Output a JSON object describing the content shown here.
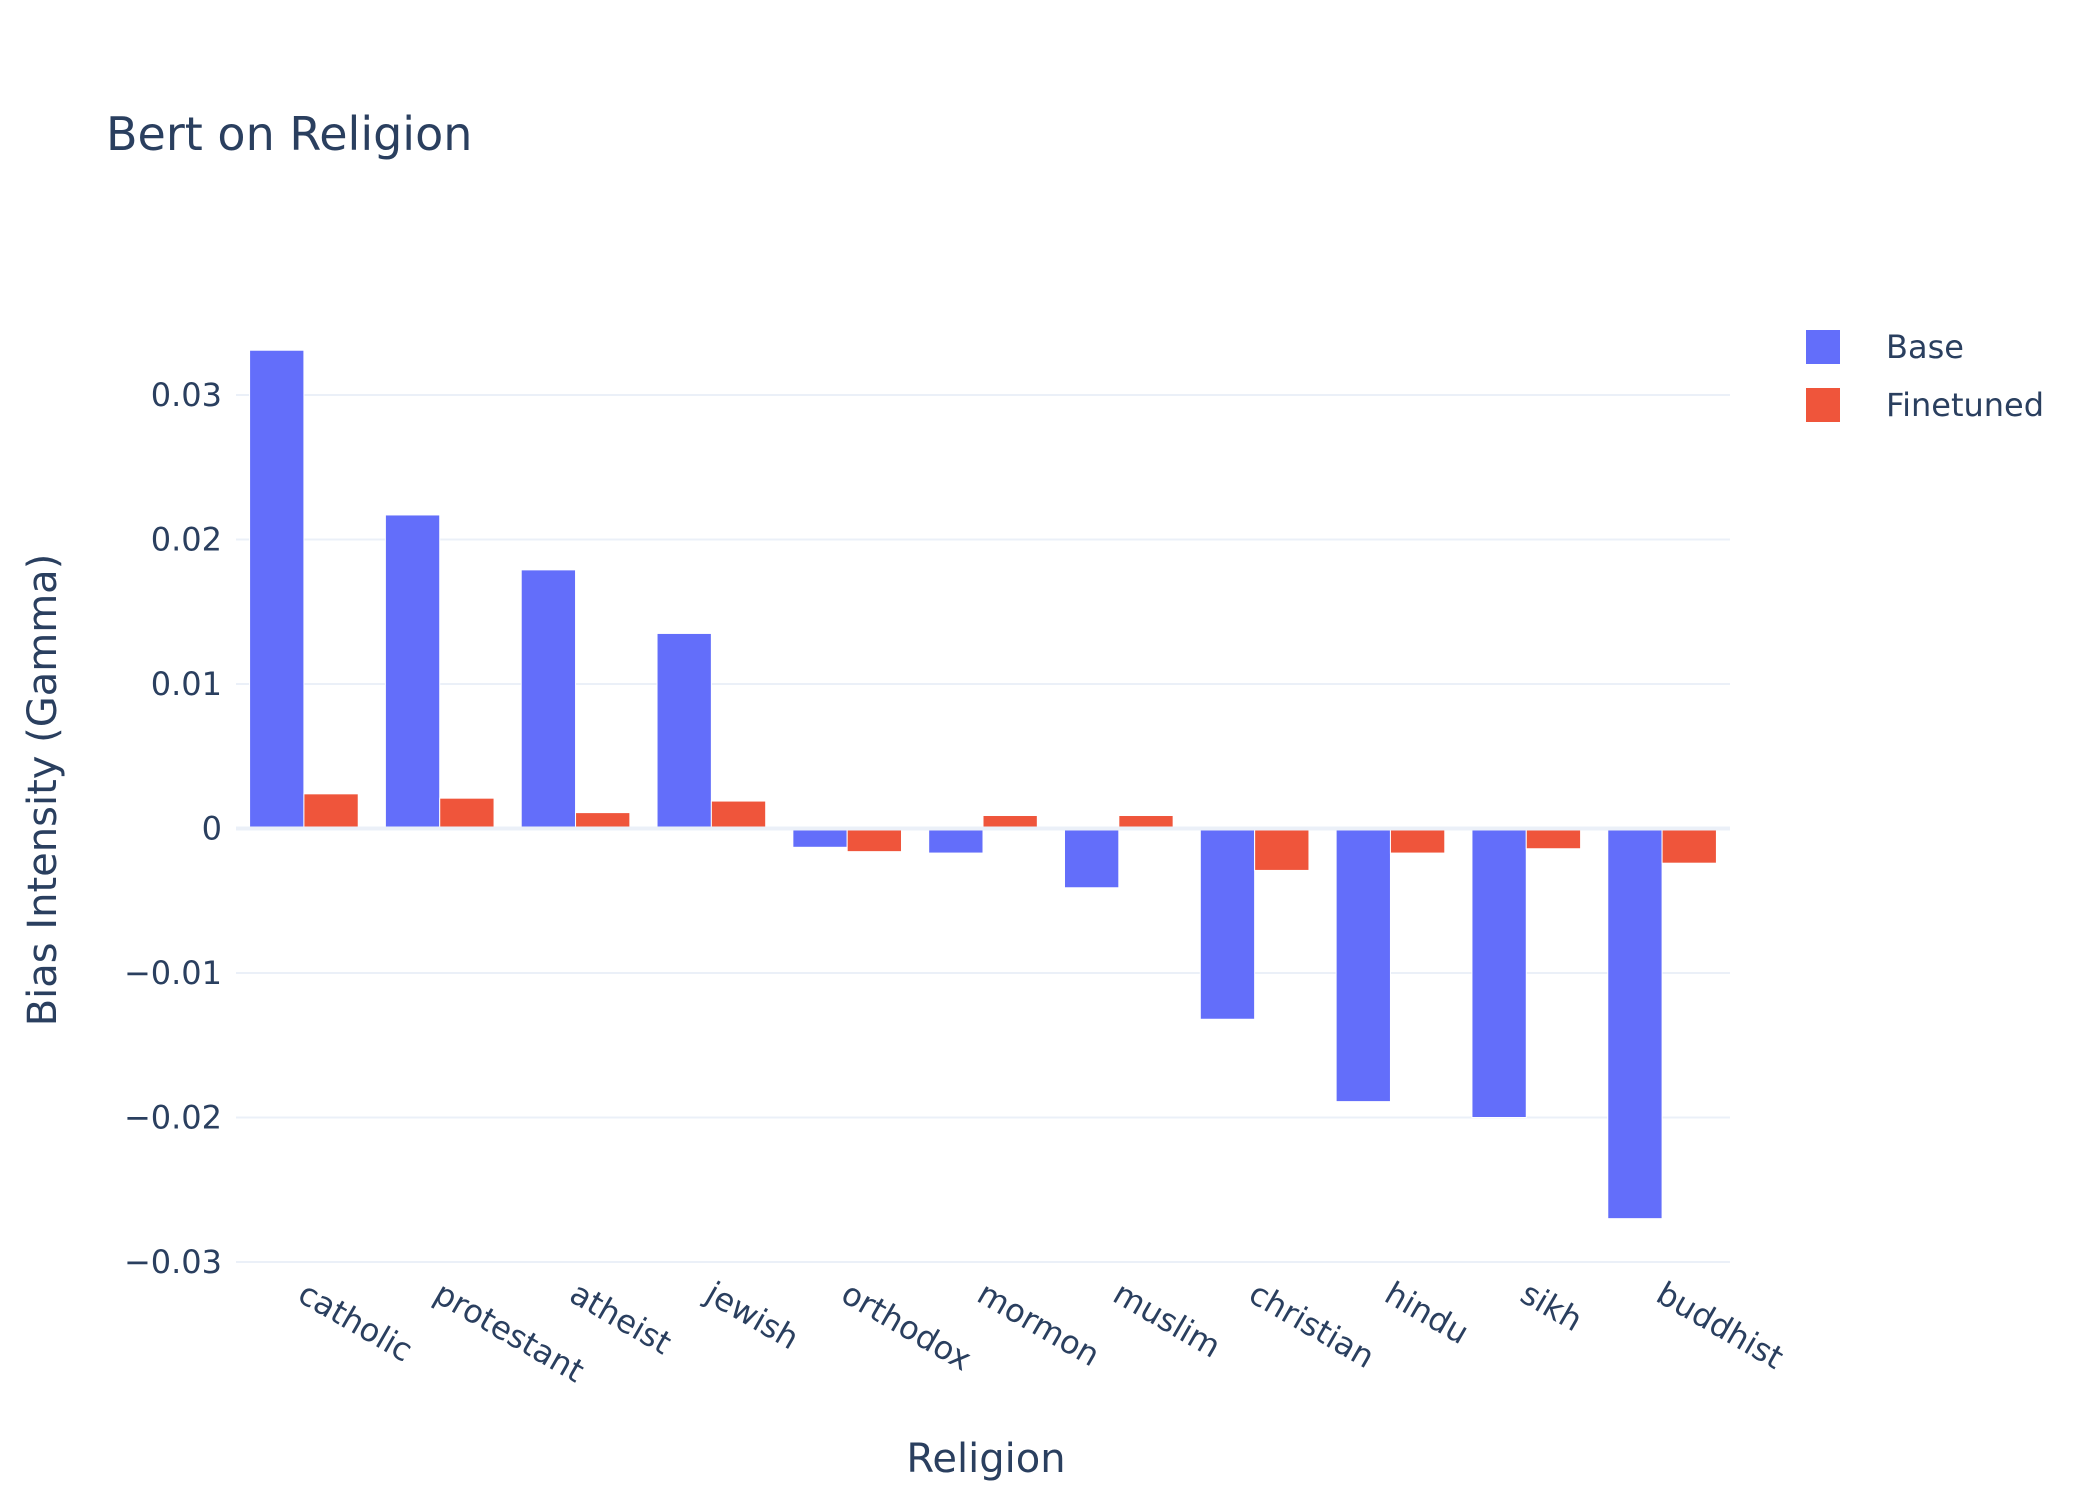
{
  "chart_data": {
    "type": "bar",
    "title": "Bert on Religion",
    "xlabel": "Religion",
    "ylabel": "Bias Intensity (Gamma)",
    "categories": [
      "catholic",
      "protestant",
      "atheist",
      "jewish",
      "orthodox",
      "mormon",
      "muslim",
      "christian",
      "hindu",
      "sikh",
      "buddhist"
    ],
    "series": [
      {
        "name": "Base",
        "color": "#636efa",
        "values": [
          0.0331,
          0.0217,
          0.0179,
          0.0135,
          -0.0013,
          -0.0017,
          -0.0041,
          -0.0132,
          -0.0189,
          -0.02,
          -0.027
        ]
      },
      {
        "name": "Finetuned",
        "color": "#ef553b",
        "values": [
          0.0024,
          0.0021,
          0.0011,
          0.0019,
          -0.0016,
          0.0009,
          0.0009,
          -0.0029,
          -0.0017,
          -0.0014,
          -0.0024
        ]
      }
    ],
    "ylim": [
      -0.03,
      0.0345
    ],
    "yticks": [
      0.03,
      0.02,
      0.01,
      0,
      -0.01,
      -0.02,
      -0.03
    ],
    "ytick_labels": [
      "0.03",
      "0.02",
      "0.01",
      "0",
      "−0.01",
      "−0.02",
      "−0.03"
    ],
    "grid": true,
    "legend_position": "top-right"
  }
}
